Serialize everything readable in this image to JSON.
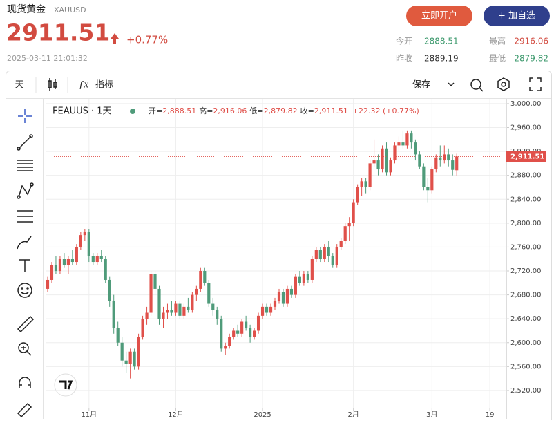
{
  "header": {
    "title": "现货黄金",
    "symbol": "XAUUSD",
    "price": "2911.51",
    "change": "+0.77%",
    "time": "2025-03-11 21:01:32",
    "buttons": [
      "立即开户",
      "+ 加自选"
    ],
    "stats": [
      {
        "label": "今开",
        "value": "2888.51"
      },
      {
        "label": "最高",
        "value": "2916.06"
      },
      {
        "label": "昨收",
        "value": "2889.19"
      },
      {
        "label": "最低",
        "value": "2879.82"
      }
    ]
  },
  "toolbar": {
    "interval": "天",
    "indicators": "指标",
    "save": "保存"
  },
  "chart_data": {
    "type": "candlestick",
    "name": "FEAUUS · 1天",
    "legend": [
      {
        "label": "开=",
        "value": "2,888.51"
      },
      {
        "label": "高=",
        "value": "2,916.06"
      },
      {
        "label": "低=",
        "value": "2,879.82"
      },
      {
        "label": "收=",
        "value": "2,911.51"
      }
    ],
    "change": "+22.32 (+0.77%)",
    "last_price": {
      "value": 2911.51,
      "label": "2,911.51"
    },
    "up_color": "#e0504a",
    "down_color": "#4f9b7a",
    "grid": true,
    "ylim": [
      2491,
      3008
    ],
    "yticks": [
      {
        "value": 2520,
        "label": "2,520.00"
      },
      {
        "value": 2560,
        "label": "2,560.00"
      },
      {
        "value": 2600,
        "label": "2,600.00"
      },
      {
        "value": 2640,
        "label": "2,640.00"
      },
      {
        "value": 2680,
        "label": "2,680.00"
      },
      {
        "value": 2720,
        "label": "2,720.00"
      },
      {
        "value": 2760,
        "label": "2,760.00"
      },
      {
        "value": 2800,
        "label": "2,800.00"
      },
      {
        "value": 2840,
        "label": "2,840.00"
      },
      {
        "value": 2880,
        "label": "2,880.00"
      },
      {
        "value": 2920,
        "label": "2,920.00"
      },
      {
        "value": 2960,
        "label": "2,960.00"
      },
      {
        "value": 3000,
        "label": "3,000.00"
      }
    ],
    "xlim": [
      -0.5,
      111
    ],
    "xticks": [
      {
        "value": 10,
        "label": "11月"
      },
      {
        "value": 31,
        "label": "12月"
      },
      {
        "value": 52,
        "label": "2025"
      },
      {
        "value": 74,
        "label": "2月"
      },
      {
        "value": 93,
        "label": "3月"
      },
      {
        "value": 107,
        "label": "19"
      }
    ],
    "ohlc": [
      [
        2690,
        2710,
        2685,
        2705
      ],
      [
        2705,
        2735,
        2700,
        2730
      ],
      [
        2730,
        2745,
        2715,
        2720
      ],
      [
        2720,
        2745,
        2715,
        2740
      ],
      [
        2740,
        2750,
        2725,
        2730
      ],
      [
        2730,
        2745,
        2715,
        2740
      ],
      [
        2740,
        2755,
        2730,
        2735
      ],
      [
        2735,
        2765,
        2730,
        2760
      ],
      [
        2760,
        2785,
        2755,
        2780
      ],
      [
        2780,
        2790,
        2770,
        2785
      ],
      [
        2785,
        2790,
        2735,
        2745
      ],
      [
        2745,
        2750,
        2730,
        2735
      ],
      [
        2735,
        2750,
        2730,
        2745
      ],
      [
        2745,
        2755,
        2735,
        2740
      ],
      [
        2740,
        2745,
        2700,
        2705
      ],
      [
        2705,
        2710,
        2660,
        2670
      ],
      [
        2670,
        2680,
        2615,
        2625
      ],
      [
        2625,
        2635,
        2595,
        2600
      ],
      [
        2600,
        2610,
        2560,
        2570
      ],
      [
        2570,
        2585,
        2550,
        2565
      ],
      [
        2565,
        2590,
        2540,
        2585
      ],
      [
        2585,
        2590,
        2555,
        2560
      ],
      [
        2560,
        2615,
        2555,
        2610
      ],
      [
        2610,
        2645,
        2605,
        2640
      ],
      [
        2640,
        2660,
        2630,
        2650
      ],
      [
        2650,
        2720,
        2645,
        2715
      ],
      [
        2715,
        2720,
        2680,
        2690
      ],
      [
        2690,
        2695,
        2630,
        2640
      ],
      [
        2640,
        2660,
        2625,
        2650
      ],
      [
        2650,
        2665,
        2640,
        2655
      ],
      [
        2655,
        2670,
        2645,
        2650
      ],
      [
        2650,
        2670,
        2645,
        2665
      ],
      [
        2665,
        2670,
        2640,
        2645
      ],
      [
        2645,
        2665,
        2640,
        2660
      ],
      [
        2660,
        2675,
        2650,
        2655
      ],
      [
        2655,
        2685,
        2650,
        2680
      ],
      [
        2680,
        2695,
        2670,
        2690
      ],
      [
        2690,
        2725,
        2685,
        2720
      ],
      [
        2720,
        2725,
        2695,
        2700
      ],
      [
        2700,
        2705,
        2660,
        2665
      ],
      [
        2665,
        2675,
        2645,
        2655
      ],
      [
        2655,
        2660,
        2630,
        2640
      ],
      [
        2640,
        2645,
        2585,
        2590
      ],
      [
        2590,
        2600,
        2580,
        2595
      ],
      [
        2595,
        2615,
        2590,
        2610
      ],
      [
        2610,
        2625,
        2605,
        2620
      ],
      [
        2620,
        2630,
        2610,
        2615
      ],
      [
        2615,
        2640,
        2610,
        2635
      ],
      [
        2635,
        2645,
        2620,
        2625
      ],
      [
        2625,
        2630,
        2600,
        2610
      ],
      [
        2610,
        2625,
        2605,
        2620
      ],
      [
        2620,
        2650,
        2615,
        2645
      ],
      [
        2645,
        2665,
        2640,
        2660
      ],
      [
        2660,
        2665,
        2645,
        2650
      ],
      [
        2650,
        2665,
        2645,
        2660
      ],
      [
        2660,
        2675,
        2655,
        2670
      ],
      [
        2670,
        2690,
        2665,
        2685
      ],
      [
        2685,
        2690,
        2660,
        2665
      ],
      [
        2665,
        2695,
        2660,
        2690
      ],
      [
        2690,
        2695,
        2675,
        2680
      ],
      [
        2680,
        2715,
        2675,
        2710
      ],
      [
        2710,
        2720,
        2695,
        2700
      ],
      [
        2700,
        2720,
        2695,
        2715
      ],
      [
        2715,
        2720,
        2700,
        2705
      ],
      [
        2705,
        2745,
        2700,
        2740
      ],
      [
        2740,
        2760,
        2735,
        2755
      ],
      [
        2755,
        2760,
        2735,
        2740
      ],
      [
        2740,
        2765,
        2735,
        2760
      ],
      [
        2760,
        2770,
        2735,
        2745
      ],
      [
        2745,
        2750,
        2725,
        2730
      ],
      [
        2730,
        2765,
        2725,
        2760
      ],
      [
        2760,
        2775,
        2755,
        2770
      ],
      [
        2770,
        2800,
        2765,
        2795
      ],
      [
        2795,
        2810,
        2770,
        2800
      ],
      [
        2800,
        2840,
        2795,
        2835
      ],
      [
        2835,
        2865,
        2830,
        2860
      ],
      [
        2860,
        2875,
        2845,
        2870
      ],
      [
        2870,
        2875,
        2850,
        2860
      ],
      [
        2860,
        2905,
        2855,
        2900
      ],
      [
        2900,
        2940,
        2895,
        2905
      ],
      [
        2905,
        2915,
        2880,
        2890
      ],
      [
        2890,
        2930,
        2885,
        2925
      ],
      [
        2925,
        2935,
        2880,
        2885
      ],
      [
        2885,
        2910,
        2880,
        2905
      ],
      [
        2905,
        2935,
        2900,
        2930
      ],
      [
        2930,
        2945,
        2920,
        2935
      ],
      [
        2935,
        2955,
        2925,
        2930
      ],
      [
        2930,
        2955,
        2925,
        2950
      ],
      [
        2950,
        2955,
        2925,
        2935
      ],
      [
        2935,
        2940,
        2905,
        2915
      ],
      [
        2915,
        2920,
        2890,
        2895
      ],
      [
        2895,
        2900,
        2855,
        2860
      ],
      [
        2860,
        2875,
        2835,
        2855
      ],
      [
        2855,
        2895,
        2850,
        2890
      ],
      [
        2890,
        2915,
        2885,
        2910
      ],
      [
        2910,
        2930,
        2895,
        2905
      ],
      [
        2905,
        2930,
        2900,
        2915
      ],
      [
        2915,
        2925,
        2895,
        2905
      ],
      [
        2905,
        2915,
        2880,
        2889.19
      ],
      [
        2888.51,
        2916.06,
        2879.82,
        2911.51
      ]
    ]
  }
}
